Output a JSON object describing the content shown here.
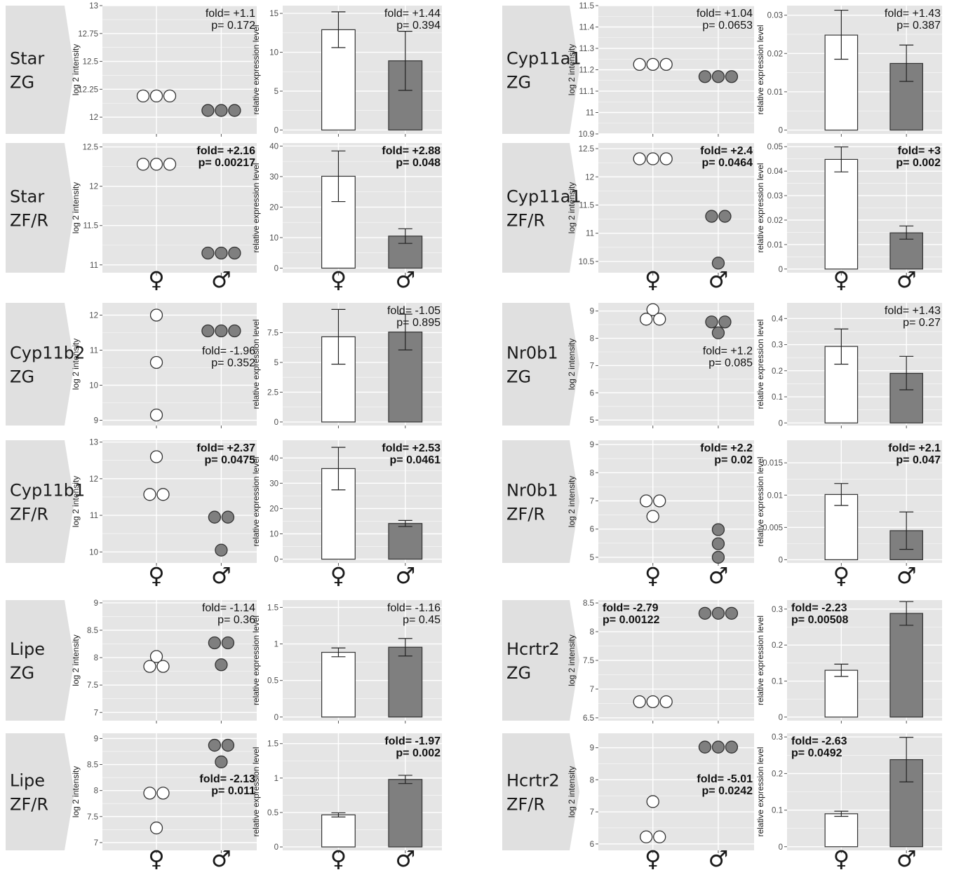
{
  "colors": {
    "panel_bg": "#e5e5e5",
    "grid": "#ffffff",
    "female_fill": "#ffffff",
    "male_fill": "#7f7f7f",
    "label_tab": "#e0e0e0",
    "outline": "#333333"
  },
  "sex_labels": [
    "♀",
    "♂"
  ],
  "chart_data": [
    {
      "gene": "Star",
      "zone": "ZG",
      "bold": false,
      "scatter": {
        "type": "scatter",
        "ylabel": "log 2 intensity",
        "ylim": [
          11.85,
          13.0
        ],
        "yticks": [
          12,
          12.25,
          12.5,
          12.75,
          13
        ],
        "female": [
          12.19,
          12.19,
          12.19
        ],
        "male": [
          12.06,
          12.06,
          12.06
        ],
        "fold": "fold= +1.1",
        "p": "p= 0.172",
        "ann_pos": "top-right"
      },
      "bar": {
        "type": "bar",
        "ylabel": "relative expression level",
        "ylim": [
          -0.5,
          16
        ],
        "yticks": [
          0,
          5,
          10,
          15
        ],
        "values": [
          12.9,
          8.9
        ],
        "errors": [
          [
            10.6,
            15.2
          ],
          [
            5.1,
            12.7
          ]
        ],
        "fold": "fold= +1.44",
        "p": "p= 0.394",
        "ann_pos": "top-right"
      }
    },
    {
      "gene": "Cyp11a1",
      "zone": "ZG",
      "bold": false,
      "scatter": {
        "type": "scatter",
        "ylabel": "log 2 intensity",
        "ylim": [
          10.9,
          11.5
        ],
        "yticks": [
          10.9,
          11,
          11.1,
          11.2,
          11.3,
          11.4,
          11.5
        ],
        "female": [
          11.225,
          11.225,
          11.225
        ],
        "male": [
          11.168,
          11.168,
          11.168
        ],
        "fold": "fold= +1.04",
        "p": "p= 0.0653",
        "ann_pos": "top-right"
      },
      "bar": {
        "type": "bar",
        "ylabel": "relative expression level",
        "ylim": [
          -0.001,
          0.0325
        ],
        "yticks": [
          0,
          0.01,
          0.02,
          0.03
        ],
        "values": [
          0.0248,
          0.0174
        ],
        "errors": [
          [
            0.0185,
            0.0313
          ],
          [
            0.0127,
            0.0222
          ]
        ],
        "fold": "fold= +1.43",
        "p": "p= 0.387",
        "ann_pos": "top-right"
      }
    },
    {
      "gene": "Star",
      "zone": "ZF/R",
      "bold": true,
      "scatter": {
        "type": "scatter",
        "ylabel": "log 2 intensity",
        "ylim": [
          10.9,
          12.55
        ],
        "yticks": [
          11,
          11.5,
          12,
          12.5
        ],
        "female": [
          12.28,
          12.28,
          12.28
        ],
        "male": [
          11.15,
          11.15,
          11.15
        ],
        "fold": "fold= +2.16",
        "p": "p= 0.00217",
        "ann_pos": "top-right"
      },
      "bar": {
        "type": "bar",
        "ylabel": "relative expression level",
        "ylim": [
          -1.5,
          41
        ],
        "yticks": [
          0,
          10,
          20,
          30,
          40
        ],
        "values": [
          30.1,
          10.5
        ],
        "errors": [
          [
            21.8,
            38.4
          ],
          [
            8.1,
            12.9
          ]
        ],
        "fold": "fold= +2.88",
        "p": "p= 0.048",
        "ann_pos": "top-right"
      }
    },
    {
      "gene": "Cyp11a1",
      "zone": "ZF/R",
      "bold": true,
      "scatter": {
        "type": "scatter",
        "ylabel": "log 2 intensity",
        "ylim": [
          10.3,
          12.6
        ],
        "yticks": [
          10.5,
          11,
          11.5,
          12,
          12.5
        ],
        "female": [
          12.32,
          12.32,
          12.32
        ],
        "male": [
          11.3,
          11.3,
          10.47
        ],
        "fold": "fold= +2.4",
        "p": "p= 0.0464",
        "ann_pos": "top-right"
      },
      "bar": {
        "type": "bar",
        "ylabel": "relative expression level",
        "ylim": [
          -0.0015,
          0.0515
        ],
        "yticks": [
          0,
          0.01,
          0.02,
          0.03,
          0.04,
          0.05
        ],
        "values": [
          0.0448,
          0.0148
        ],
        "errors": [
          [
            0.0397,
            0.0499
          ],
          [
            0.0122,
            0.0176
          ]
        ],
        "fold": "fold= +3",
        "p": "p= 0.002",
        "ann_pos": "top-right"
      }
    },
    {
      "gene": "Cyp11b2",
      "zone": "ZG",
      "bold": false,
      "scatter": {
        "type": "scatter",
        "ylabel": "log 2 intensity",
        "ylim": [
          8.85,
          12.35
        ],
        "yticks": [
          9,
          10,
          11,
          12
        ],
        "female": [
          12.0,
          10.65,
          9.15
        ],
        "male": [
          11.55,
          11.55,
          11.55
        ],
        "fold": "fold= -1.96",
        "p": "p= 0.352",
        "ann_pos": "mid-right"
      },
      "bar": {
        "type": "bar",
        "ylabel": "relative expression level",
        "ylim": [
          -0.3,
          10.0
        ],
        "yticks": [
          0,
          2.5,
          5.0,
          7.5
        ],
        "values": [
          7.15,
          7.55
        ],
        "errors": [
          [
            4.85,
            9.45
          ],
          [
            6.05,
            9.05
          ]
        ],
        "fold": "fold= -1.05",
        "p": "p= 0.895",
        "ann_pos": "top-right"
      }
    },
    {
      "gene": "Nr0b1",
      "zone": "ZG",
      "bold": false,
      "scatter": {
        "type": "scatter",
        "ylabel": "log 2 intensity",
        "ylim": [
          4.8,
          9.3
        ],
        "yticks": [
          5,
          6,
          7,
          8,
          9
        ],
        "female": [
          9.05,
          8.7,
          8.7
        ],
        "male": [
          8.6,
          8.6,
          8.2
        ],
        "fold": "fold= +1.2",
        "p": "p= 0.085",
        "ann_pos": "mid-right"
      },
      "bar": {
        "type": "bar",
        "ylabel": "relative expression level",
        "ylim": [
          -0.01,
          0.46
        ],
        "yticks": [
          0,
          0.1,
          0.2,
          0.3,
          0.4
        ],
        "values": [
          0.293,
          0.19
        ],
        "errors": [
          [
            0.225,
            0.36
          ],
          [
            0.127,
            0.255
          ]
        ],
        "fold": "fold= +1.43",
        "p": "p= 0.27",
        "ann_pos": "top-right"
      }
    },
    {
      "gene": "Cyp11b1",
      "zone": "ZF/R",
      "bold": true,
      "scatter": {
        "type": "scatter",
        "ylabel": "log 2 intensity",
        "ylim": [
          9.7,
          13.05
        ],
        "yticks": [
          10,
          11,
          12,
          13
        ],
        "female": [
          12.6,
          11.57,
          11.57
        ],
        "male": [
          10.95,
          10.95,
          10.05
        ],
        "fold": "fold= +2.37",
        "p": "p= 0.0475",
        "ann_pos": "top-right"
      },
      "bar": {
        "type": "bar",
        "ylabel": "relative expression level",
        "ylim": [
          -1.5,
          47
        ],
        "yticks": [
          0,
          10,
          20,
          30,
          40
        ],
        "values": [
          35.8,
          14.1
        ],
        "errors": [
          [
            27.4,
            44.2
          ],
          [
            12.9,
            15.3
          ]
        ],
        "fold": "fold= +2.53",
        "p": "p= 0.0461",
        "ann_pos": "top-right"
      }
    },
    {
      "gene": "Nr0b1",
      "zone": "ZF/R",
      "bold": true,
      "scatter": {
        "type": "scatter",
        "ylabel": "log 2 intensity",
        "ylim": [
          4.8,
          9.15
        ],
        "yticks": [
          5,
          6,
          7,
          8,
          9
        ],
        "female": [
          7.0,
          7.0,
          6.45
        ],
        "male": [
          5.98,
          5.48,
          5.0
        ],
        "fold": "fold= +2.2",
        "p": "p= 0.02",
        "ann_pos": "top-right"
      },
      "bar": {
        "type": "bar",
        "ylabel": "relative expression level",
        "ylim": [
          -0.0005,
          0.0185
        ],
        "yticks": [
          0,
          0.005,
          0.01,
          0.015
        ],
        "values": [
          0.0101,
          0.0045
        ],
        "errors": [
          [
            0.0084,
            0.0118
          ],
          [
            0.0016,
            0.0074
          ]
        ],
        "fold": "fold= +2.1",
        "p": "p= 0.047",
        "ann_pos": "top-right"
      }
    },
    {
      "gene": "Lipe",
      "zone": "ZG",
      "bold": false,
      "scatter": {
        "type": "scatter",
        "ylabel": "log 2 intensity",
        "ylim": [
          6.85,
          9.05
        ],
        "yticks": [
          7,
          7.5,
          8,
          8.5,
          9
        ],
        "female": [
          8.02,
          7.84,
          7.84
        ],
        "male": [
          8.27,
          8.27,
          7.87
        ],
        "fold": "fold= -1.14",
        "p": "p= 0.36",
        "ann_pos": "top-right"
      },
      "bar": {
        "type": "bar",
        "ylabel": "relative expression level",
        "ylim": [
          -0.05,
          1.6
        ],
        "yticks": [
          0,
          0.5,
          1,
          1.5
        ],
        "values": [
          0.885,
          0.955
        ],
        "errors": [
          [
            0.825,
            0.945
          ],
          [
            0.835,
            1.075
          ]
        ],
        "fold": "fold= -1.16",
        "p": "p= 0.45",
        "ann_pos": "top-right"
      }
    },
    {
      "gene": "Hcrtr2",
      "zone": "ZG",
      "bold": true,
      "scatter": {
        "type": "scatter",
        "ylabel": "log 2 intensity",
        "ylim": [
          6.45,
          8.55
        ],
        "yticks": [
          6.5,
          7,
          7.5,
          8,
          8.5
        ],
        "female": [
          6.78,
          6.78,
          6.78
        ],
        "male": [
          8.32,
          8.32,
          8.32
        ],
        "fold": "fold= -2.79",
        "p": "p= 0.00122",
        "ann_pos": "top-left"
      },
      "bar": {
        "type": "bar",
        "ylabel": "relative expression level",
        "ylim": [
          -0.01,
          0.325
        ],
        "yticks": [
          0,
          0.1,
          0.2,
          0.3
        ],
        "values": [
          0.13,
          0.288
        ],
        "errors": [
          [
            0.113,
            0.147
          ],
          [
            0.255,
            0.321
          ]
        ],
        "fold": "fold= -2.23",
        "p": "p= 0.00508",
        "ann_pos": "top-left"
      }
    },
    {
      "gene": "Lipe",
      "zone": "ZF/R",
      "bold": true,
      "scatter": {
        "type": "scatter",
        "ylabel": "log 2 intensity",
        "ylim": [
          6.85,
          9.1
        ],
        "yticks": [
          7,
          7.5,
          8,
          8.5,
          9
        ],
        "female": [
          7.95,
          7.95,
          7.28
        ],
        "male": [
          8.87,
          8.87,
          8.55
        ],
        "fold": "fold= -2.13",
        "p": "p= 0.011",
        "ann_pos": "mid-right"
      },
      "bar": {
        "type": "bar",
        "ylabel": "relative expression level",
        "ylim": [
          -0.05,
          1.65
        ],
        "yticks": [
          0,
          0.5,
          1,
          1.5
        ],
        "values": [
          0.465,
          0.98
        ],
        "errors": [
          [
            0.435,
            0.495
          ],
          [
            0.92,
            1.04
          ]
        ],
        "fold": "fold= -1.97",
        "p": "p= 0.002",
        "ann_pos": "top-right"
      }
    },
    {
      "gene": "Hcrtr2",
      "zone": "ZF/R",
      "bold": true,
      "scatter": {
        "type": "scatter",
        "ylabel": "log 2 intensity",
        "ylim": [
          5.8,
          9.45
        ],
        "yticks": [
          6,
          7,
          8,
          9
        ],
        "female": [
          7.32,
          6.22,
          6.22
        ],
        "male": [
          9.02,
          9.02,
          9.02
        ],
        "fold": "fold= -5.01",
        "p": "p= 0.0242",
        "ann_pos": "mid-right"
      },
      "bar": {
        "type": "bar",
        "ylabel": "relative expression level",
        "ylim": [
          -0.01,
          0.31
        ],
        "yticks": [
          0,
          0.1,
          0.2,
          0.3
        ],
        "values": [
          0.09,
          0.238
        ],
        "errors": [
          [
            0.083,
            0.097
          ],
          [
            0.177,
            0.299
          ]
        ],
        "fold": "fold= -2.63",
        "p": "p= 0.0492",
        "ann_pos": "top-left"
      }
    }
  ]
}
